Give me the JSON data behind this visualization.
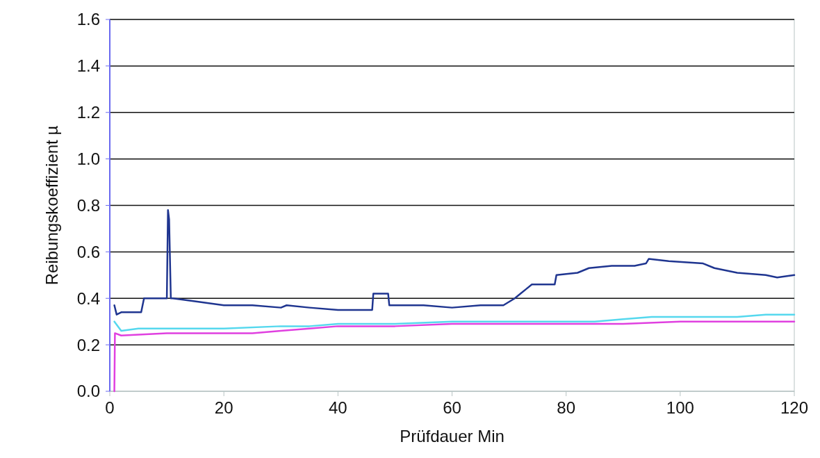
{
  "chart_data": {
    "type": "line",
    "xlabel": "Prüfdauer Min",
    "ylabel": "Reibungskoeffizient µ",
    "xlim": [
      0,
      120
    ],
    "xticks": [
      0,
      20,
      40,
      60,
      80,
      100,
      120
    ],
    "ylim": [
      0,
      1.6
    ],
    "yticks": [
      {
        "value": 0,
        "label": "0.0"
      },
      {
        "value": 0.2,
        "label": "0.2"
      },
      {
        "value": 0.4,
        "label": "0.4"
      },
      {
        "value": 0.6,
        "label": "0.6"
      },
      {
        "value": 0.8,
        "label": "0.8"
      },
      {
        "value": 1,
        "label": "1.0"
      },
      {
        "value": 1.2,
        "label": "1.2"
      },
      {
        "value": 1.4,
        "label": "1.4"
      },
      {
        "value": 1.6,
        "label": "1.6"
      }
    ],
    "grid": "y",
    "marker": "none",
    "line_style": "solid",
    "series": [
      {
        "color": "#1f3590",
        "x": [
          0.8,
          1.2,
          2,
          3,
          5.5,
          6,
          8,
          10,
          10.2,
          10.4,
          10.7,
          11,
          14,
          20,
          25,
          30,
          31,
          35,
          40,
          46,
          46.2,
          48.8,
          49,
          55,
          60,
          65,
          69,
          71,
          72,
          73,
          74,
          78,
          78.3,
          82,
          84,
          88,
          92,
          94,
          94.5,
          98,
          104,
          106,
          110,
          115,
          117,
          120
        ],
        "values": [
          0.37,
          0.33,
          0.34,
          0.34,
          0.34,
          0.4,
          0.4,
          0.4,
          0.78,
          0.74,
          0.4,
          0.4,
          0.39,
          0.37,
          0.37,
          0.36,
          0.37,
          0.36,
          0.35,
          0.35,
          0.42,
          0.42,
          0.37,
          0.37,
          0.36,
          0.37,
          0.37,
          0.4,
          0.42,
          0.44,
          0.46,
          0.46,
          0.5,
          0.51,
          0.53,
          0.54,
          0.54,
          0.55,
          0.57,
          0.56,
          0.55,
          0.53,
          0.51,
          0.5,
          0.49,
          0.5
        ]
      },
      {
        "color": "#55d8ee",
        "x": [
          0.8,
          2,
          5,
          10,
          20,
          30,
          35,
          40,
          45,
          50,
          60,
          70,
          80,
          85,
          90,
          95,
          100,
          105,
          110,
          115,
          120
        ],
        "values": [
          0.3,
          0.26,
          0.27,
          0.27,
          0.27,
          0.28,
          0.28,
          0.29,
          0.29,
          0.29,
          0.3,
          0.3,
          0.3,
          0.3,
          0.31,
          0.32,
          0.32,
          0.32,
          0.32,
          0.33,
          0.33
        ]
      },
      {
        "color": "#e040e0",
        "x": [
          0.8,
          0.9,
          2,
          10,
          20,
          25,
          30,
          35,
          40,
          45,
          50,
          60,
          70,
          80,
          90,
          100,
          110,
          120
        ],
        "values": [
          0,
          0.25,
          0.24,
          0.25,
          0.25,
          0.25,
          0.26,
          0.27,
          0.28,
          0.28,
          0.28,
          0.29,
          0.29,
          0.29,
          0.29,
          0.3,
          0.3,
          0.3
        ]
      }
    ]
  }
}
